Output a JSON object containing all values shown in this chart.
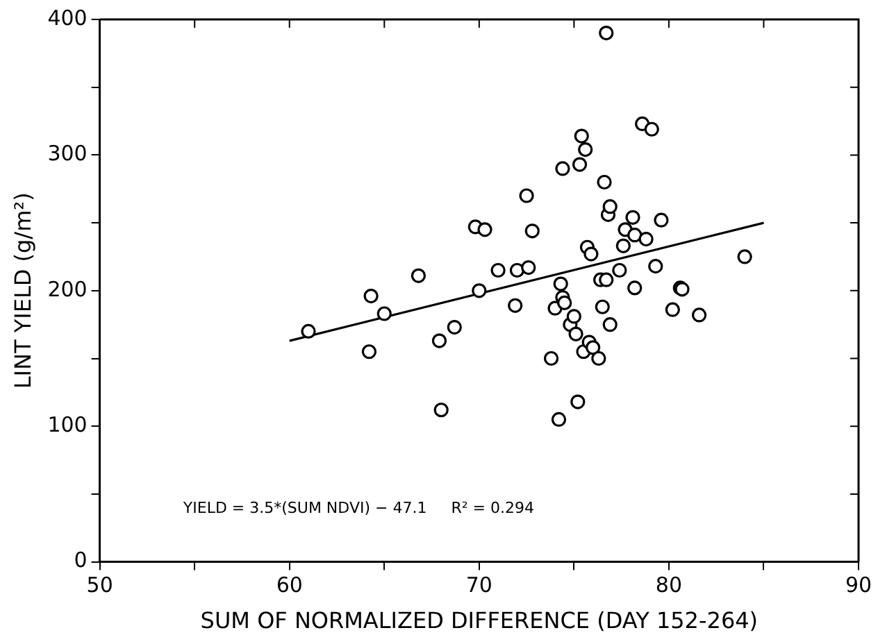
{
  "chart_data": {
    "type": "scatter",
    "xlabel": "SUM OF NORMALIZED DIFFERENCE (DAY 152-264)",
    "ylabel": "LINT YIELD (g/m²)",
    "annotations": [
      "YIELD = 3.5*(SUM NDVI) − 47.1     R² = 0.294"
    ],
    "xlim": [
      50,
      90
    ],
    "xticks": [
      50,
      {
        "value": 55,
        "label": null
      },
      60,
      {
        "value": 65,
        "label": null
      },
      70,
      {
        "value": 75,
        "label": null
      },
      80,
      {
        "value": 85,
        "label": null
      },
      90
    ],
    "ylim": [
      0,
      400
    ],
    "yticks": [
      0,
      {
        "value": 50,
        "label": null
      },
      100,
      {
        "value": 150,
        "label": null
      },
      200,
      {
        "value": 250,
        "label": null
      },
      300,
      {
        "value": 350,
        "label": null
      },
      400
    ],
    "grid": false,
    "legend": false,
    "marker": "circle",
    "series": [
      {
        "type": "scatter",
        "color": "#000000",
        "x": [
          61.0,
          64.2,
          64.3,
          65.0,
          66.8,
          67.9,
          68.0,
          68.7,
          69.8,
          70.0,
          70.3,
          71.0,
          71.9,
          72.0,
          72.5,
          72.8,
          72.6,
          73.8,
          74.0,
          74.2,
          74.3,
          74.4,
          74.4,
          74.5,
          74.8,
          75.0,
          75.1,
          75.2,
          75.3,
          75.4,
          75.5,
          75.6,
          75.7,
          75.8,
          75.9,
          76.0,
          76.3,
          76.4,
          76.5,
          76.6,
          76.7,
          76.7,
          76.8,
          76.9,
          76.9,
          77.4,
          77.6,
          77.7,
          78.1,
          78.2,
          78.2,
          78.6,
          78.8,
          79.1,
          79.3,
          79.6,
          80.2,
          80.6,
          80.7,
          81.6,
          84.0
        ],
        "values": [
          170,
          155,
          196,
          183,
          211,
          163,
          112,
          173,
          247,
          200,
          245,
          215,
          189,
          215,
          270,
          244,
          217,
          150,
          187,
          105,
          205,
          195,
          290,
          191,
          175,
          181,
          168,
          118,
          293,
          314,
          155,
          304,
          232,
          162,
          227,
          158,
          150,
          208,
          188,
          280,
          390,
          208,
          256,
          262,
          175,
          215,
          233,
          245,
          254,
          241,
          202,
          323,
          238,
          319,
          218,
          252,
          186,
          202,
          201,
          182,
          225
        ]
      },
      {
        "type": "line",
        "color": "#000000",
        "x": [
          60,
          85
        ],
        "values": [
          163,
          250
        ],
        "marker": "none",
        "line_style": "solid"
      }
    ]
  }
}
